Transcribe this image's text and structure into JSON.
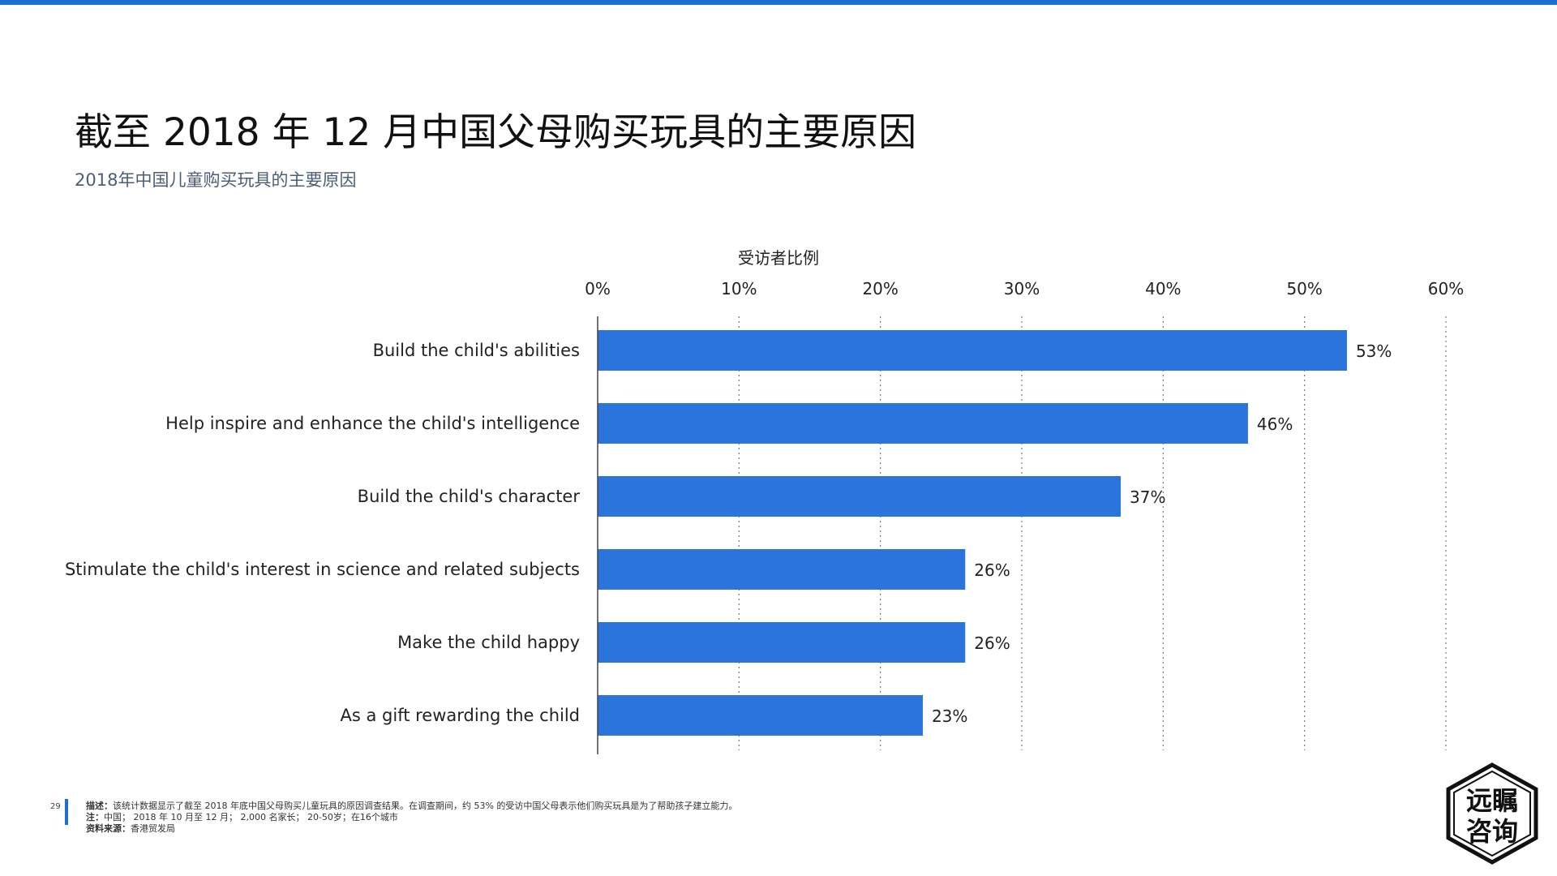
{
  "header": {
    "title": "截至 2018 年 12 月中国父母购买玩具的主要原因",
    "subtitle": "2018年中国儿童购买玩具的主要原因"
  },
  "chart_data": {
    "type": "bar",
    "orientation": "horizontal",
    "xlabel": "受访者比例",
    "xlim": [
      0,
      60
    ],
    "x_ticks": [
      "0%",
      "10%",
      "20%",
      "30%",
      "40%",
      "50%",
      "60%"
    ],
    "categories": [
      "Build the child's abilities",
      "Help inspire and enhance the child's intelligence",
      "Build the child's character",
      "Stimulate the child's interest in science and related subjects",
      "Make the child happy",
      "As a gift rewarding the child"
    ],
    "values": [
      53,
      46,
      37,
      26,
      26,
      23
    ],
    "value_labels": [
      "53%",
      "46%",
      "37%",
      "26%",
      "26%",
      "23%"
    ],
    "grid": true,
    "bar_color": "#2b74dc"
  },
  "footer": {
    "page_number": "29",
    "description_label": "描述：",
    "description": "该统计数据显示了截至 2018 年底中国父母购买儿童玩具的原因调查结果。在调查期间，约 53% 的受访中国父母表示他们购买玩具是为了帮助孩子建立能力。",
    "note_label": "注：",
    "note": "中国； 2018 年 10 月至 12 月； 2,000 名家长； 20-50岁；在16个城市",
    "source_label": "资料来源：",
    "source": "香港贸发局"
  },
  "logo": {
    "line1": "远瞩",
    "line2": "咨询"
  }
}
